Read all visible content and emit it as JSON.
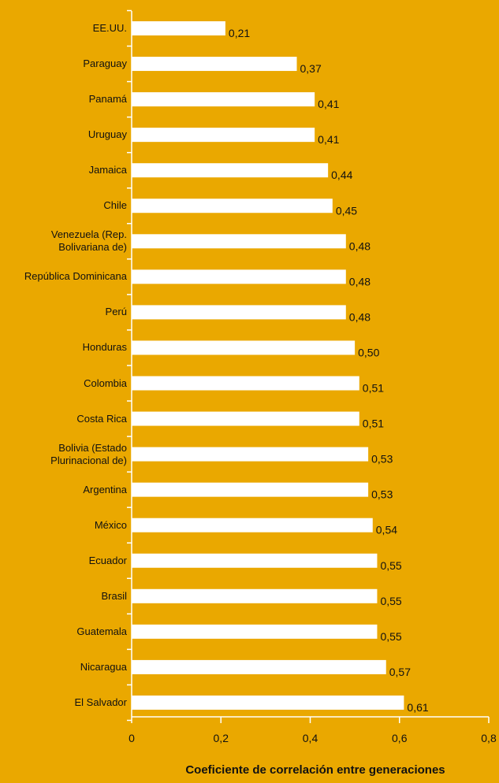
{
  "chart_data": {
    "type": "bar",
    "orientation": "horizontal",
    "x_label": "Coeficiente de correlación entre generaciones",
    "categories": [
      "EE.UU.",
      "Paraguay",
      "Panamá",
      "Uruguay",
      "Jamaica",
      "Chile",
      "Venezuela (Rep. Bolivariana de)",
      "República Dominicana",
      "Perú",
      "Honduras",
      "Colombia",
      "Costa Rica",
      "Bolivia (Estado Plurinacional de)",
      "Argentina",
      "México",
      "Ecuador",
      "Brasil",
      "Guatemala",
      "Nicaragua",
      "El Salvador"
    ],
    "values": [
      0.21,
      0.37,
      0.41,
      0.41,
      0.44,
      0.45,
      0.48,
      0.48,
      0.48,
      0.5,
      0.51,
      0.51,
      0.53,
      0.53,
      0.54,
      0.55,
      0.55,
      0.55,
      0.57,
      0.61
    ],
    "value_labels": [
      "0,21",
      "0,37",
      "0,41",
      "0,41",
      "0,44",
      "0,45",
      "0,48",
      "0,48",
      "0,48",
      "0,50",
      "0,51",
      "0,51",
      "0,53",
      "0,53",
      "0,54",
      "0,55",
      "0,55",
      "0,55",
      "0,57",
      "0,61"
    ],
    "color": "#ffffff",
    "xlim": [
      0,
      0.8
    ],
    "xticks": [
      0,
      {
        "value": 0.2,
        "label": "0,2"
      },
      {
        "value": 0.4,
        "label": "0,4"
      },
      {
        "value": 0.6,
        "label": "0,6"
      },
      {
        "value": 0.8,
        "label": "0,8"
      }
    ]
  }
}
